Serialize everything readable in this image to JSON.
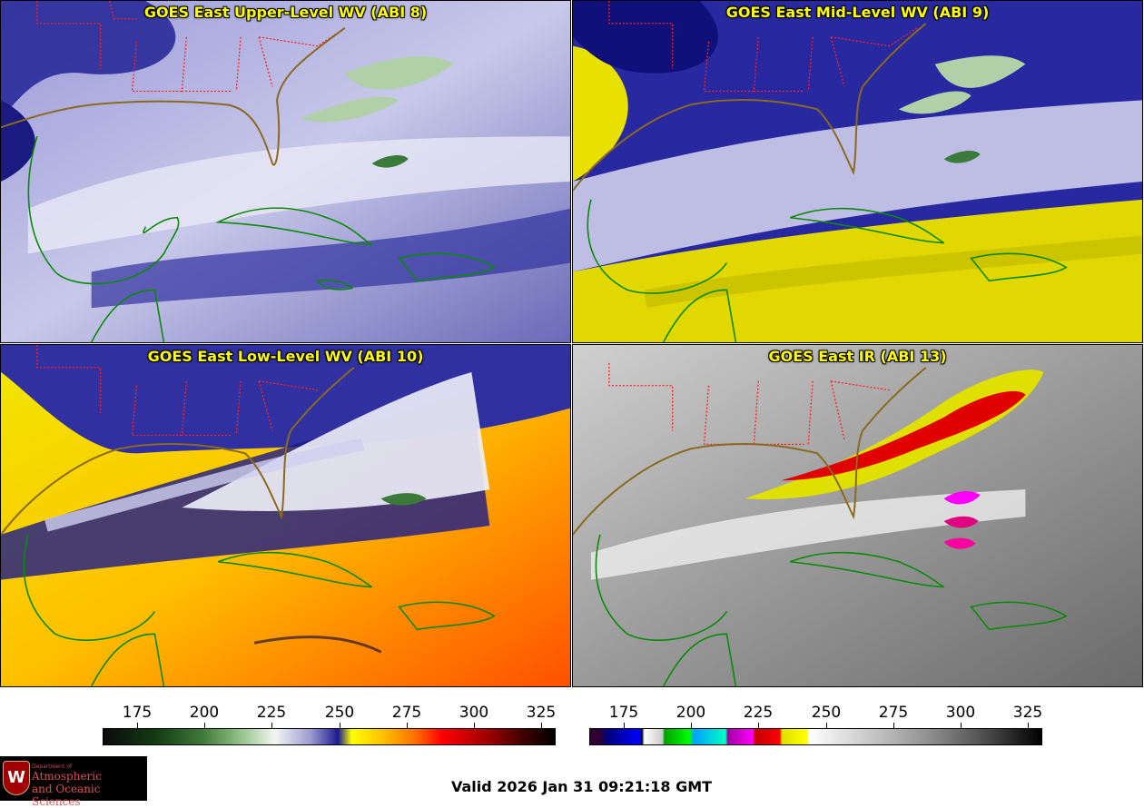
{
  "panels": [
    {
      "title": "GOES East Upper-Level WV (ABI 8)"
    },
    {
      "title": "GOES East Mid-Level WV (ABI 9)"
    },
    {
      "title": "GOES East Low-Level WV (ABI 10)"
    },
    {
      "title": "GOES East IR (ABI 13)"
    }
  ],
  "colorbars": {
    "wv": {
      "ticks": [
        "175",
        "200",
        "225",
        "250",
        "275",
        "300",
        "325"
      ]
    },
    "ir": {
      "ticks": [
        "175",
        "200",
        "225",
        "250",
        "275",
        "300",
        "325"
      ]
    }
  },
  "logo": {
    "seal": "W",
    "dept": "Department of",
    "line1": "Atmospheric",
    "line2": "and Oceanic Sciences"
  },
  "valid_time": "Valid 2026 Jan 31 09:21:18 GMT",
  "colors": {
    "state_borders": "#ff2020",
    "coastlines": "#0a8a0a",
    "title_text": "#ffff00"
  }
}
